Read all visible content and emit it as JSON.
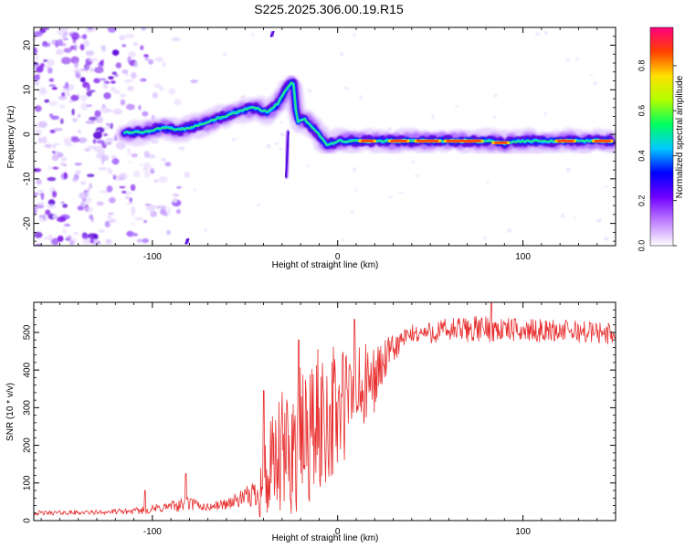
{
  "title": "S225.2025.306.00.19.R15",
  "chart_data": [
    {
      "type": "heatmap",
      "xlabel": "Height of straight line (km)",
      "ylabel": "Frequency (Hz)",
      "xlim": [
        -164,
        150
      ],
      "ylim": [
        -25,
        24
      ],
      "xticks": [
        -100,
        0,
        100
      ],
      "yticks": [
        -20,
        -10,
        0,
        10,
        20
      ],
      "colorbar": {
        "label": "Normalized spectral amplitude",
        "range": [
          0,
          0.97
        ],
        "ticks": [
          0,
          0.2,
          0.4,
          0.6,
          0.8
        ],
        "colors": [
          "#ffffff",
          "#c080ff",
          "#7000ff",
          "#0000ff",
          "#00c8ff",
          "#00ff60",
          "#b0ff00",
          "#ffe000",
          "#ff4000",
          "#ff0080"
        ]
      },
      "ridge": {
        "x": [
          -115,
          -105,
          -95,
          -85,
          -75,
          -65,
          -55,
          -45,
          -38,
          -32,
          -28,
          -24,
          -22,
          -18,
          -14,
          -10,
          -6,
          0,
          10,
          20,
          40,
          60,
          80,
          90,
          100,
          120,
          140,
          148
        ],
        "hz": [
          0.5,
          0.5,
          1.5,
          1.0,
          2.0,
          3.5,
          5.0,
          6.0,
          5.0,
          7.0,
          10.0,
          12.0,
          3.0,
          3.5,
          1.5,
          0.0,
          -2.5,
          -1.5,
          -1.5,
          -1.5,
          -1.5,
          -1.5,
          -1.5,
          -2.0,
          -1.5,
          -1.5,
          -1.5,
          -1.5
        ]
      },
      "noise_region": {
        "x_from": -164,
        "x_to": -95,
        "hz_from": -25,
        "hz_to": 24
      },
      "artifacts": [
        {
          "x": -28,
          "hz": -4.5,
          "length_hz": 10
        },
        {
          "x": -36,
          "hz": 22.5,
          "length_hz": 1
        },
        {
          "x": -82,
          "hz": -24,
          "length_hz": 1
        }
      ]
    },
    {
      "type": "line",
      "xlabel": "Height of straight line (km)",
      "ylabel": "SNR (10 * v/v)",
      "xlim": [
        -164,
        150
      ],
      "ylim": [
        0,
        580
      ],
      "xticks": [
        -100,
        0,
        100
      ],
      "yticks": [
        0,
        100,
        200,
        300,
        400,
        500
      ],
      "color": "#e83030",
      "envelope": {
        "x": [
          -164,
          -130,
          -110,
          -100,
          -90,
          -80,
          -70,
          -60,
          -50,
          -44,
          -40,
          -35,
          -30,
          -25,
          -20,
          -15,
          -10,
          -5,
          0,
          5,
          10,
          15,
          20,
          25,
          30,
          35,
          40,
          50,
          60,
          80,
          100,
          120,
          140,
          150
        ],
        "mean": [
          20,
          22,
          25,
          30,
          38,
          45,
          35,
          45,
          60,
          75,
          100,
          130,
          165,
          190,
          210,
          235,
          260,
          280,
          290,
          310,
          330,
          350,
          380,
          420,
          455,
          480,
          495,
          500,
          505,
          510,
          505,
          505,
          500,
          495
        ],
        "amp": [
          6,
          6,
          8,
          12,
          15,
          20,
          10,
          15,
          25,
          45,
          120,
          150,
          180,
          190,
          200,
          200,
          200,
          190,
          180,
          170,
          140,
          120,
          90,
          60,
          40,
          30,
          25,
          30,
          35,
          35,
          30,
          30,
          30,
          30
        ]
      },
      "spikes": [
        {
          "x": -104,
          "snr": 80
        },
        {
          "x": -82,
          "snr": 125
        },
        {
          "x": -40,
          "snr": 345
        },
        {
          "x": -21,
          "snr": 480
        },
        {
          "x": 9,
          "snr": 535
        },
        {
          "x": 83,
          "snr": 580
        }
      ]
    }
  ]
}
